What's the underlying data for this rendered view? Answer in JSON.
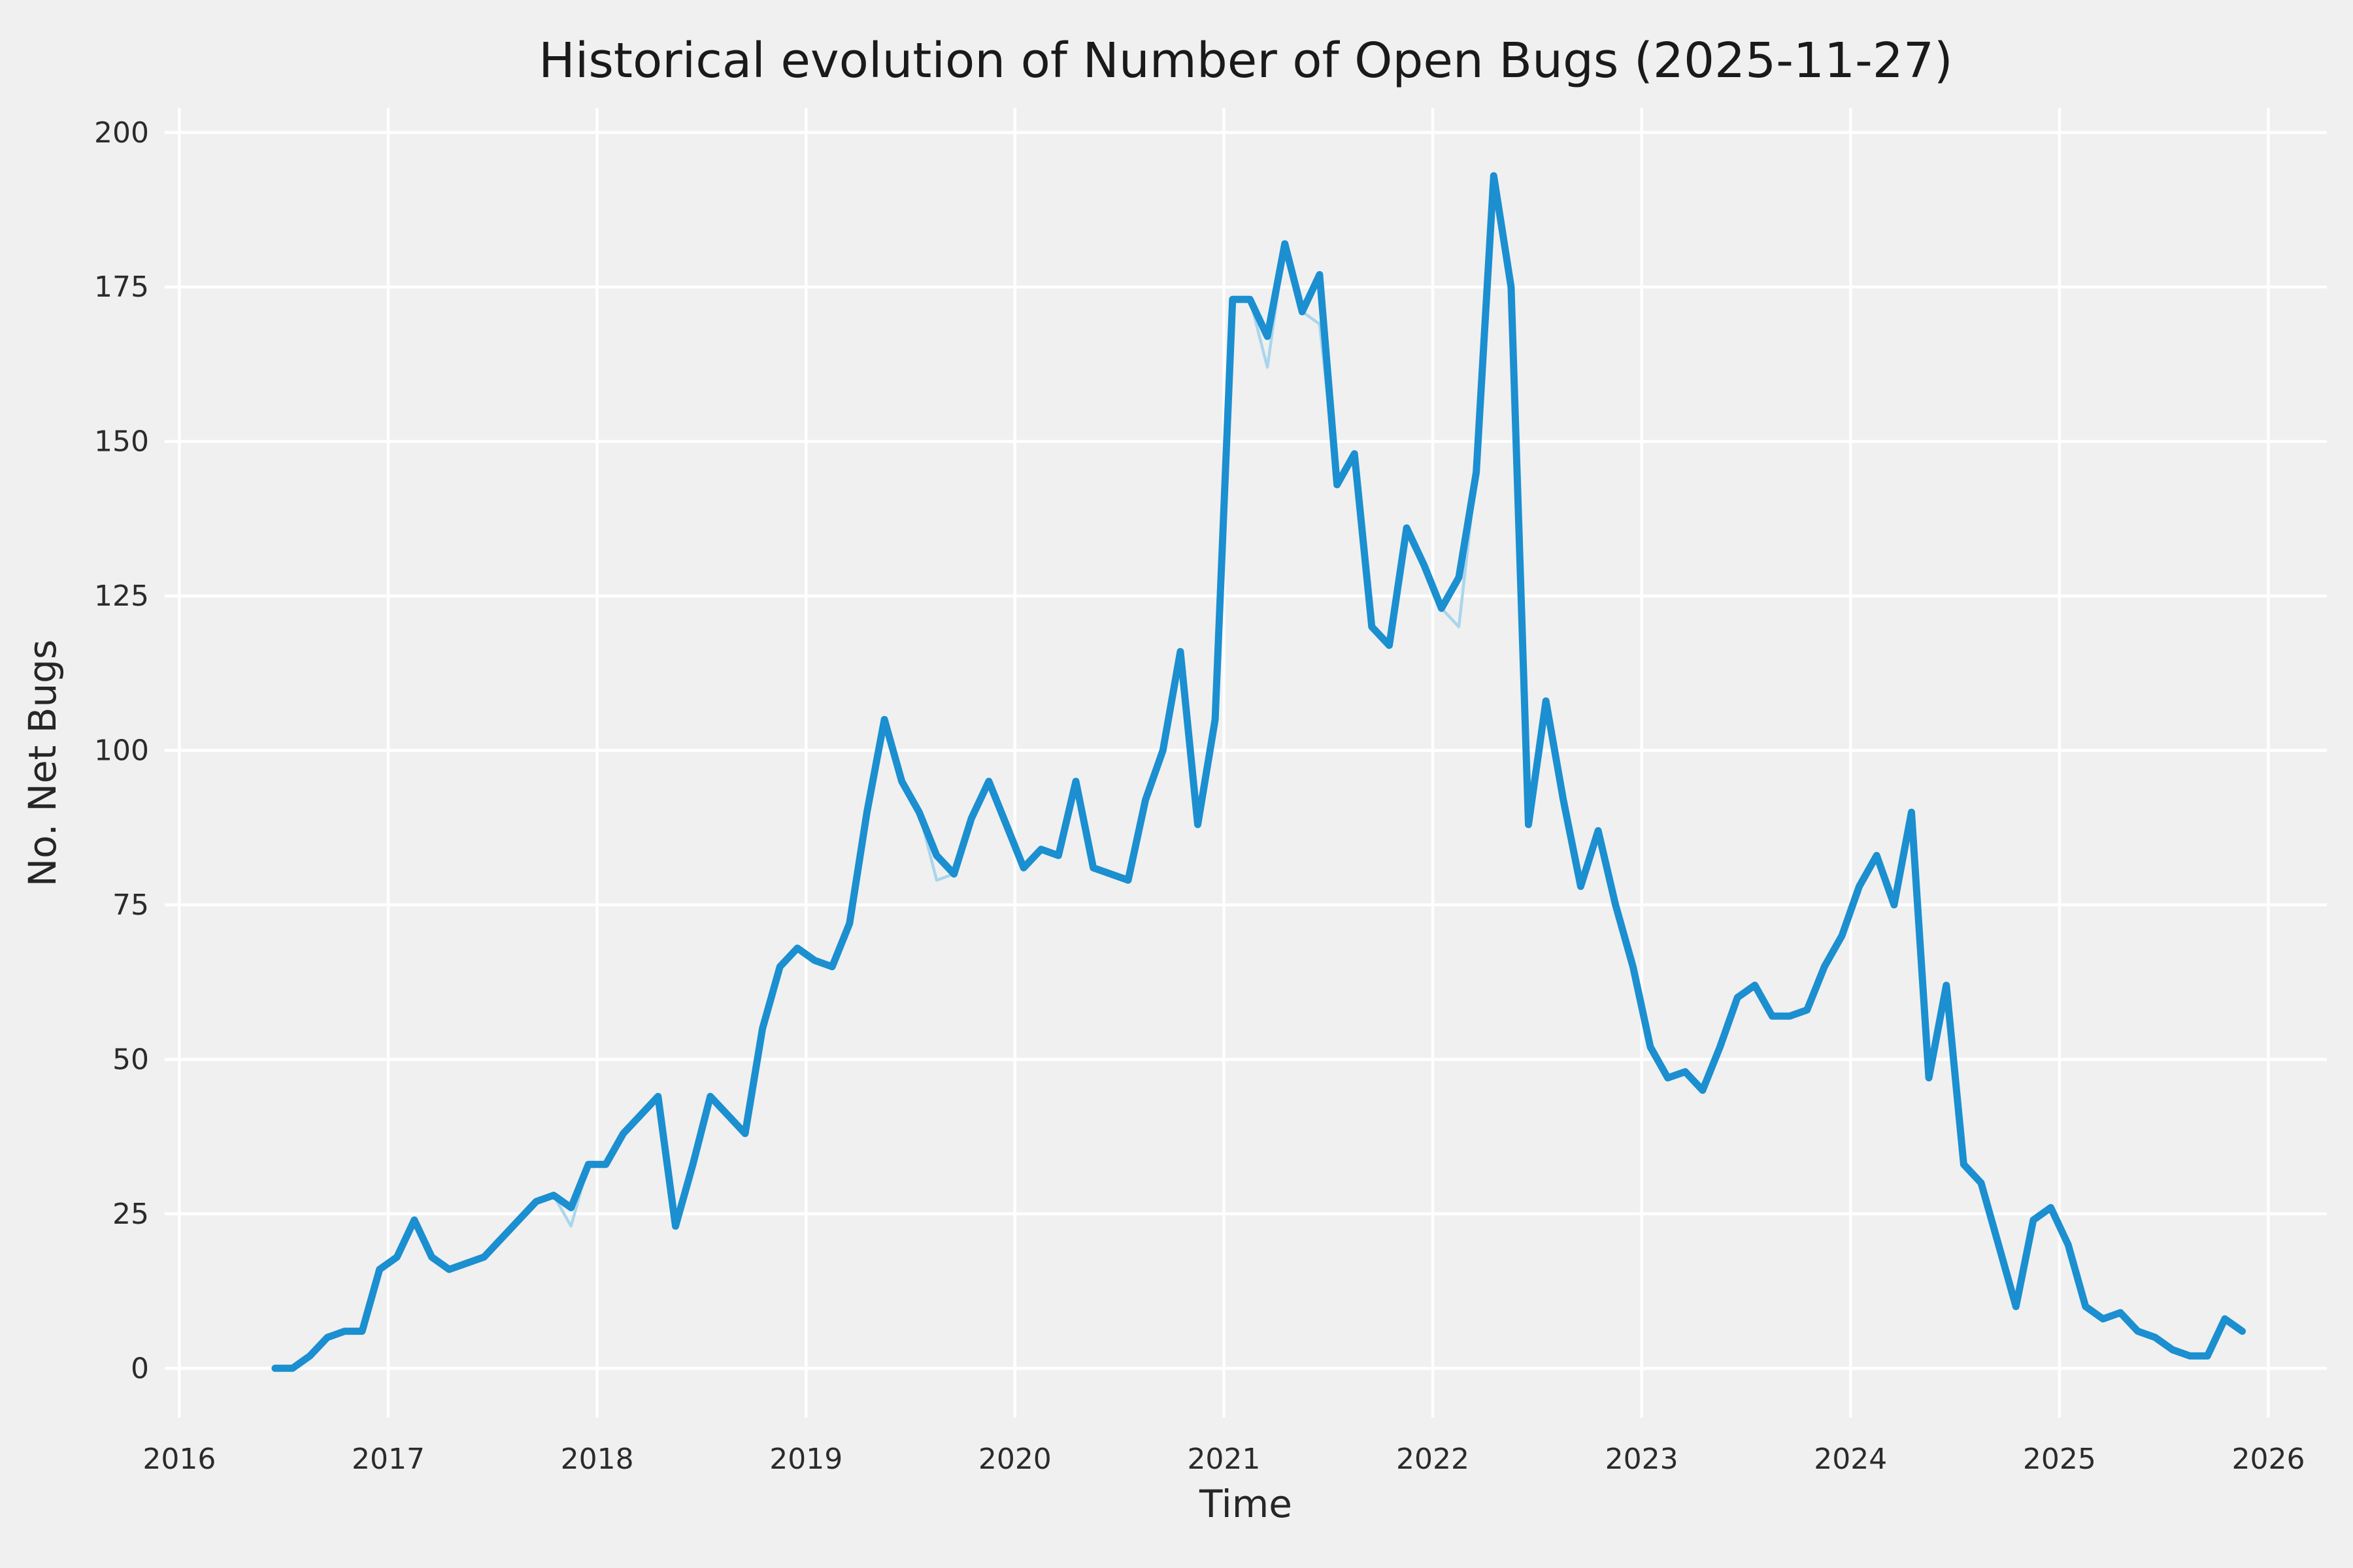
{
  "page": {
    "kind": "matplotlib-style-figure",
    "background": "#f0f0f0"
  },
  "chart_data": {
    "type": "line",
    "title": "Historical evolution of Number of Open Bugs (2025-11-27)",
    "xlabel": "Time",
    "ylabel": "No. Net Bugs",
    "grid": true,
    "legend": "none",
    "background": "#f0f0f0",
    "grid_color": "#ffffff",
    "line_color": "#1b8fd0",
    "shadow_color": "#a9d6ec",
    "x_ticks": [
      2016,
      2017,
      2018,
      2019,
      2020,
      2021,
      2022,
      2023,
      2024,
      2025,
      2026
    ],
    "y_ticks": [
      0,
      25,
      50,
      75,
      100,
      125,
      150,
      175,
      200
    ],
    "xlim": [
      2015.93,
      2026.28
    ],
    "ylim": [
      -8,
      204
    ],
    "dates": [
      "2016-06",
      "2016-07",
      "2016-08",
      "2016-09",
      "2016-10",
      "2016-11",
      "2016-12",
      "2017-01",
      "2017-02",
      "2017-03",
      "2017-04",
      "2017-05",
      "2017-06",
      "2017-07",
      "2017-08",
      "2017-09",
      "2017-10",
      "2017-11",
      "2017-12",
      "2018-01",
      "2018-02",
      "2018-03",
      "2018-04",
      "2018-05",
      "2018-06",
      "2018-07",
      "2018-08",
      "2018-09",
      "2018-10",
      "2018-11",
      "2018-12",
      "2019-01",
      "2019-02",
      "2019-03",
      "2019-04",
      "2019-05",
      "2019-06",
      "2019-07",
      "2019-08",
      "2019-09",
      "2019-10",
      "2019-11",
      "2019-12",
      "2020-01",
      "2020-02",
      "2020-03",
      "2020-04",
      "2020-05",
      "2020-06",
      "2020-07",
      "2020-08",
      "2020-09",
      "2020-10",
      "2020-11",
      "2020-12",
      "2021-01",
      "2021-02",
      "2021-03",
      "2021-04",
      "2021-05",
      "2021-06",
      "2021-07",
      "2021-08",
      "2021-09",
      "2021-10",
      "2021-11",
      "2021-12",
      "2022-01",
      "2022-02",
      "2022-03",
      "2022-04",
      "2022-05",
      "2022-06",
      "2022-07",
      "2022-08",
      "2022-09",
      "2022-10",
      "2022-11",
      "2022-12",
      "2023-01",
      "2023-02",
      "2023-03",
      "2023-04",
      "2023-05",
      "2023-06",
      "2023-07",
      "2023-08",
      "2023-09",
      "2023-10",
      "2023-11",
      "2023-12",
      "2024-01",
      "2024-02",
      "2024-03",
      "2024-04",
      "2024-05",
      "2024-06",
      "2024-07",
      "2024-08",
      "2024-09",
      "2024-10",
      "2024-11",
      "2024-12",
      "2025-01",
      "2025-02",
      "2025-03",
      "2025-04",
      "2025-05",
      "2025-06",
      "2025-07",
      "2025-08",
      "2025-09",
      "2025-10",
      "2025-11"
    ],
    "values": [
      0,
      0,
      2,
      5,
      6,
      6,
      16,
      18,
      24,
      18,
      16,
      17,
      18,
      21,
      24,
      27,
      28,
      26,
      33,
      33,
      38,
      41,
      44,
      23,
      33,
      44,
      41,
      38,
      55,
      65,
      68,
      66,
      65,
      72,
      90,
      105,
      95,
      90,
      83,
      80,
      89,
      95,
      88,
      81,
      84,
      83,
      95,
      81,
      80,
      79,
      92,
      100,
      116,
      88,
      105,
      173,
      173,
      167,
      182,
      171,
      177,
      143,
      148,
      120,
      117,
      136,
      130,
      123,
      128,
      145,
      193,
      175,
      88,
      108,
      92,
      78,
      87,
      75,
      65,
      52,
      47,
      48,
      45,
      52,
      60,
      62,
      57,
      57,
      58,
      65,
      70,
      78,
      83,
      75,
      90,
      47,
      62,
      33,
      30,
      20,
      10,
      24,
      26,
      20,
      10,
      8,
      9,
      6,
      5,
      3,
      2,
      2,
      8,
      6
    ],
    "secondary_diffs": {
      "2017-11": 23,
      "2019-08": 79,
      "2021-03": 162,
      "2021-06": 169,
      "2022-02": 120
    }
  }
}
